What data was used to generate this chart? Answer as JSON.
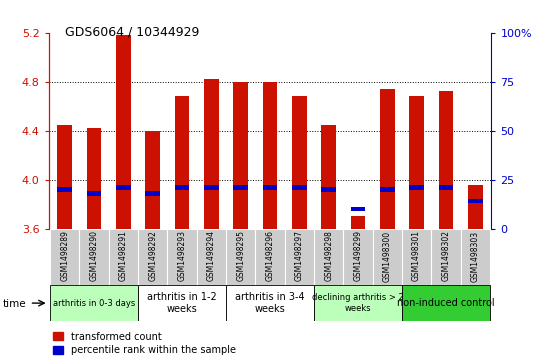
{
  "title": "GDS6064 / 10344929",
  "samples": [
    "GSM1498289",
    "GSM1498290",
    "GSM1498291",
    "GSM1498292",
    "GSM1498293",
    "GSM1498294",
    "GSM1498295",
    "GSM1498296",
    "GSM1498297",
    "GSM1498298",
    "GSM1498299",
    "GSM1498300",
    "GSM1498301",
    "GSM1498302",
    "GSM1498303"
  ],
  "transformed_count": [
    4.45,
    4.42,
    5.18,
    4.4,
    4.68,
    4.82,
    4.8,
    4.8,
    4.68,
    4.45,
    3.7,
    4.74,
    4.68,
    4.72,
    3.96
  ],
  "percentile_rank": [
    20,
    18,
    21,
    18,
    21,
    21,
    21,
    21,
    21,
    20,
    10,
    20,
    21,
    21,
    14
  ],
  "ymin": 3.6,
  "ymax": 5.2,
  "yticks": [
    3.6,
    4.0,
    4.4,
    4.8,
    5.2
  ],
  "right_yticks": [
    0,
    25,
    50,
    75,
    100
  ],
  "groups": [
    {
      "label": "arthritis in 0-3 days",
      "start": 0,
      "end": 3,
      "color": "#bbffbb",
      "fontsize": 6
    },
    {
      "label": "arthritis in 1-2\nweeks",
      "start": 3,
      "end": 6,
      "color": "#ffffff",
      "fontsize": 7
    },
    {
      "label": "arthritis in 3-4\nweeks",
      "start": 6,
      "end": 9,
      "color": "#ffffff",
      "fontsize": 7
    },
    {
      "label": "declining arthritis > 2\nweeks",
      "start": 9,
      "end": 12,
      "color": "#bbffbb",
      "fontsize": 6
    },
    {
      "label": "non-induced control",
      "start": 12,
      "end": 15,
      "color": "#33cc33",
      "fontsize": 7
    }
  ],
  "bar_color": "#cc1100",
  "blue_color": "#0000cc",
  "bar_bottom": 3.6,
  "bar_width": 0.5,
  "sample_bg": "#cccccc",
  "plot_bg": "#ffffff",
  "legend_red_label": "transformed count",
  "legend_blue_label": "percentile rank within the sample",
  "grid_lines": [
    4.0,
    4.4,
    4.8
  ]
}
